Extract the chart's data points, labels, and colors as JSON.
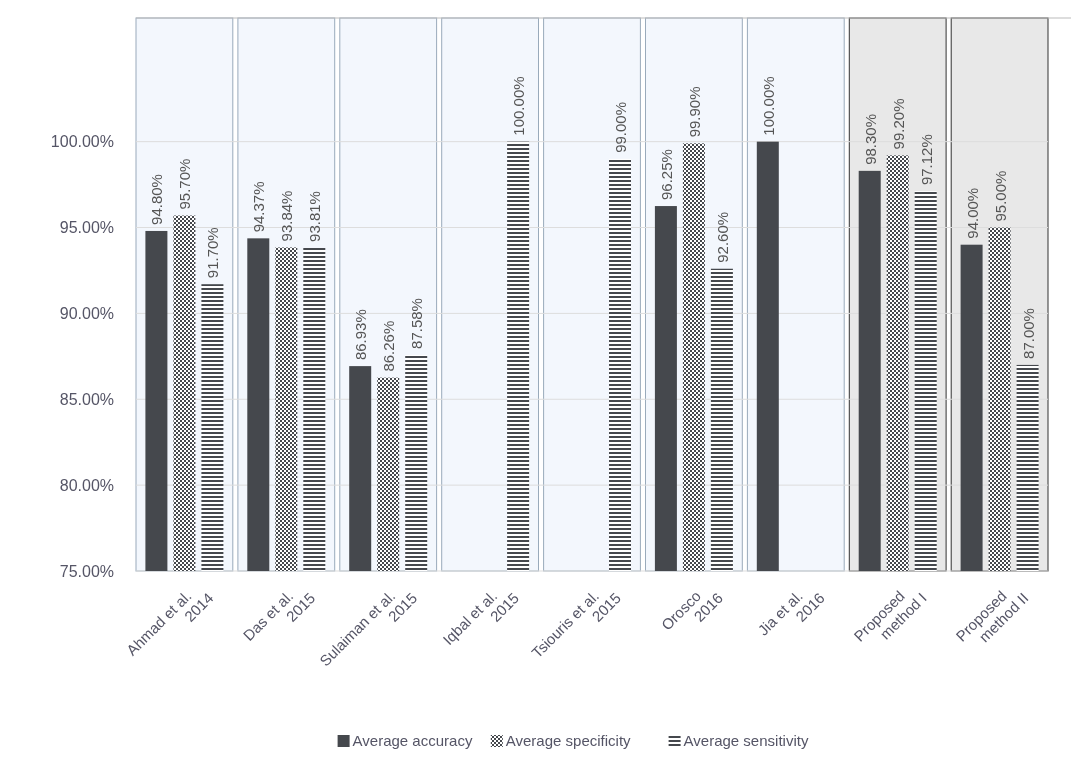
{
  "chart_data": {
    "type": "bar",
    "categories": [
      "Ahmad et al.\n2014",
      "Das et al.\n2015",
      "Sulaiman et al.\n2015",
      "Iqbal et al.\n2015",
      "Tsiouris et al.\n2015",
      "Orosco\n2016",
      "Jia et al.\n2016",
      "Proposed\nmethod I",
      "Proposed\nmethod II"
    ],
    "series": [
      {
        "name": "Average accuracy",
        "color": "#45484d",
        "values": [
          94.8,
          94.37,
          86.93,
          null,
          null,
          96.25,
          100,
          98.3,
          94.0
        ],
        "value_labels": [
          "94.80%",
          "94.37%",
          "86.93%",
          null,
          null,
          "96.25%",
          "100.00%",
          "98.30%",
          "94.00%"
        ]
      },
      {
        "name": "Average specificity",
        "color": "#45484d",
        "values": [
          95.7,
          93.84,
          86.26,
          null,
          null,
          99.9,
          null,
          99.2,
          95.0
        ],
        "value_labels": [
          "95.70%",
          "93.84%",
          "86.26%",
          null,
          null,
          "99.90%",
          null,
          "99.20%",
          "95.00%"
        ]
      },
      {
        "name": "Average sensitivity",
        "color": "#45484d",
        "values": [
          91.7,
          93.81,
          87.58,
          100,
          99.0,
          92.6,
          null,
          97.12,
          87.0
        ],
        "value_labels": [
          "91.70%",
          "93.81%",
          "87.58%",
          "100.00%",
          "99.00%",
          "92.60%",
          null,
          "97.12%",
          "87.00%"
        ]
      }
    ],
    "ylim": [
      75,
      107.2
    ],
    "yticks": [
      {
        "value": 75,
        "label": "75.00%"
      },
      {
        "value": 80,
        "label": "80.00%"
      },
      {
        "value": 85,
        "label": "85.00%"
      },
      {
        "value": 90,
        "label": "90.00%"
      },
      {
        "value": 95,
        "label": "95.00%"
      },
      {
        "value": 100,
        "label": "100.00%"
      }
    ],
    "bands": [
      {
        "axis": "x",
        "from": "Ahmad et al.\n2014",
        "to": "Ahmad et al.\n2014",
        "color": "#f3f7fd"
      },
      {
        "axis": "x",
        "from": "Das et al.\n2015",
        "to": "Das et al.\n2015",
        "color": "#f3f7fd"
      },
      {
        "axis": "x",
        "from": "Sulaiman et al.\n2015",
        "to": "Sulaiman et al.\n2015",
        "color": "#f3f7fd"
      },
      {
        "axis": "x",
        "from": "Iqbal et al.\n2015",
        "to": "Iqbal et al.\n2015",
        "color": "#f3f7fd"
      },
      {
        "axis": "x",
        "from": "Tsiouris et al.\n2015",
        "to": "Tsiouris et al.\n2015",
        "color": "#f3f7fd"
      },
      {
        "axis": "x",
        "from": "Orosco\n2016",
        "to": "Orosco\n2016",
        "color": "#f3f7fd"
      },
      {
        "axis": "x",
        "from": "Jia et al.\n2016",
        "to": "Jia et al.\n2016",
        "color": "#f3f7fd"
      },
      {
        "axis": "x",
        "from": "Proposed\nmethod I",
        "to": "Proposed\nmethod I",
        "color": "#e8e8e8"
      },
      {
        "axis": "x",
        "from": "Proposed\nmethod II",
        "to": "Proposed\nmethod II",
        "color": "#e8e8e8"
      }
    ],
    "grid": "y",
    "legend": "bottom"
  }
}
